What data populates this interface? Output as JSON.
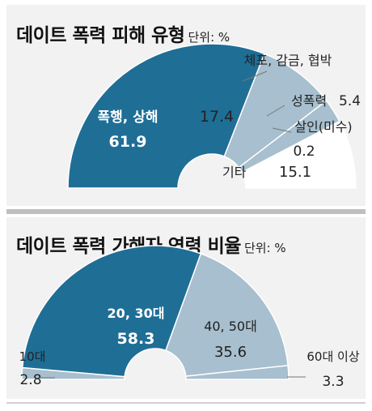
{
  "chart_data": [
    {
      "type": "pie",
      "title": "데이트 폭력 피해 유형",
      "unit_label": "단위: %",
      "slices": [
        {
          "label": "폭행, 상해",
          "value": 61.9,
          "color": "#1f6e96",
          "text_color": "#ffffff"
        },
        {
          "label": "체포, 감금, 협박",
          "value": 17.4,
          "color": "#a7bfce",
          "text_color": "#222222"
        },
        {
          "label": "성폭력",
          "value": 5.4,
          "color": "#a7bfce",
          "text_color": "#222222"
        },
        {
          "label": "살인(미수)",
          "value": 0.2,
          "color": "#a7bfce",
          "text_color": "#222222"
        },
        {
          "label": "기타",
          "value": 15.1,
          "color": "#ffffff",
          "text_color": "#222222"
        }
      ]
    },
    {
      "type": "pie",
      "title": "데이트 폭력 가해자 연령 비율",
      "unit_label": "단위: %",
      "slices": [
        {
          "label": "10대",
          "value": 2.8,
          "color": "#a7bfce",
          "text_color": "#222222"
        },
        {
          "label": "20, 30대",
          "value": 58.3,
          "color": "#1f6e96",
          "text_color": "#ffffff"
        },
        {
          "label": "40, 50대",
          "value": 35.6,
          "color": "#a7bfce",
          "text_color": "#222222"
        },
        {
          "label": "60대 이상",
          "value": 3.3,
          "color": "#a7bfce",
          "text_color": "#222222"
        }
      ]
    }
  ]
}
